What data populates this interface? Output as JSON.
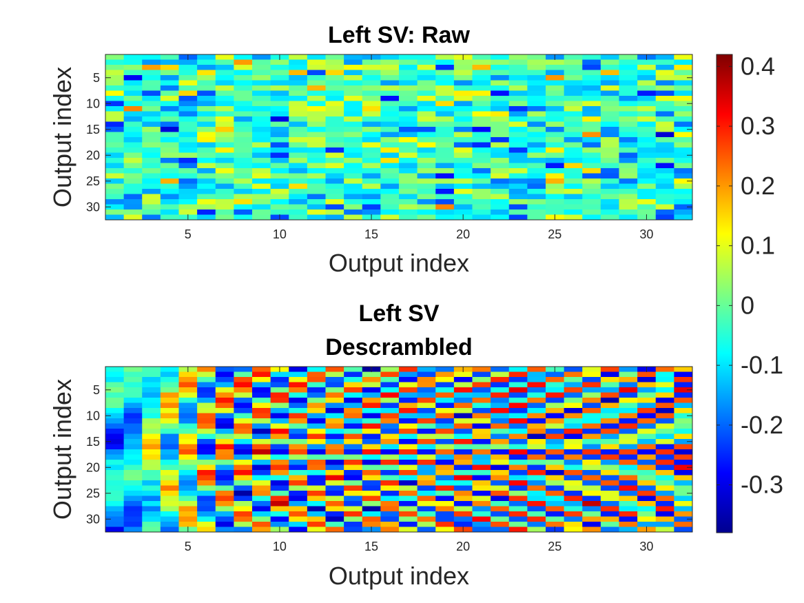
{
  "chart_data": [
    {
      "type": "heatmap",
      "title": "Left SV: Raw",
      "title_lines": [
        "Left SV: Raw"
      ],
      "xlabel": "Output index",
      "ylabel": "Output index",
      "rows": 32,
      "cols": 32,
      "x_ticks": [
        5,
        10,
        15,
        20,
        25,
        30
      ],
      "y_ticks": [
        5,
        10,
        15,
        20,
        25,
        30
      ],
      "y_direction": "reverse",
      "pattern": "noise",
      "seed": 17
    },
    {
      "type": "heatmap",
      "title": "Left SV Descrambled",
      "title_lines": [
        "Left SV",
        "Descrambled"
      ],
      "xlabel": "Output index",
      "ylabel": "Output index",
      "rows": 32,
      "cols": 32,
      "x_ticks": [
        5,
        10,
        15,
        20,
        25,
        30
      ],
      "y_ticks": [
        5,
        10,
        15,
        20,
        25,
        30
      ],
      "y_direction": "reverse",
      "pattern": "smooth-left-oscillating-right",
      "seed": 91
    }
  ],
  "colorbar": {
    "colormap": "jet",
    "vmin": -0.38,
    "vmax": 0.42,
    "ticks": [
      0.4,
      0.3,
      0.2,
      0.1,
      0,
      -0.1,
      -0.2,
      -0.3
    ],
    "tick_labels": [
      "0.4",
      "0.3",
      "0.2",
      "0.1",
      "0",
      "-0.1",
      "-0.2",
      "-0.3"
    ],
    "position": "right"
  }
}
